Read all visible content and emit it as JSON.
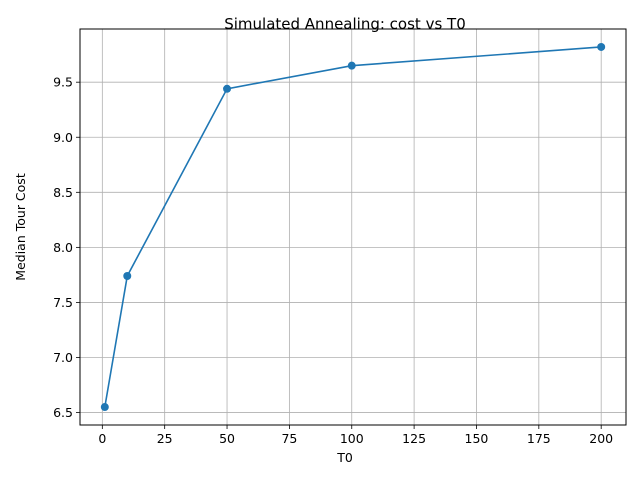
{
  "chart_data": {
    "type": "line",
    "title": "Simulated Annealing: cost vs T0",
    "xlabel": "T0",
    "ylabel": "Median Tour Cost",
    "x": [
      1,
      10,
      50,
      100,
      200
    ],
    "series": [
      {
        "values": [
          6.55,
          7.74,
          9.44,
          9.65,
          9.82
        ],
        "color": "#1f77b4"
      }
    ],
    "xlim": [
      -8.95,
      209.95
    ],
    "ylim": [
      6.387,
      9.983
    ],
    "xticks": [
      0,
      25,
      50,
      75,
      100,
      125,
      150,
      175,
      200
    ],
    "yticks": [
      6.5,
      7.0,
      7.5,
      8.0,
      8.5,
      9.0,
      9.5
    ],
    "xtick_labels": [
      "0",
      "25",
      "50",
      "75",
      "100",
      "125",
      "150",
      "175",
      "200"
    ],
    "ytick_labels": [
      "6.5",
      "7.0",
      "7.5",
      "8.0",
      "8.5",
      "9.0",
      "9.5"
    ],
    "grid": true,
    "marker": "circle"
  }
}
